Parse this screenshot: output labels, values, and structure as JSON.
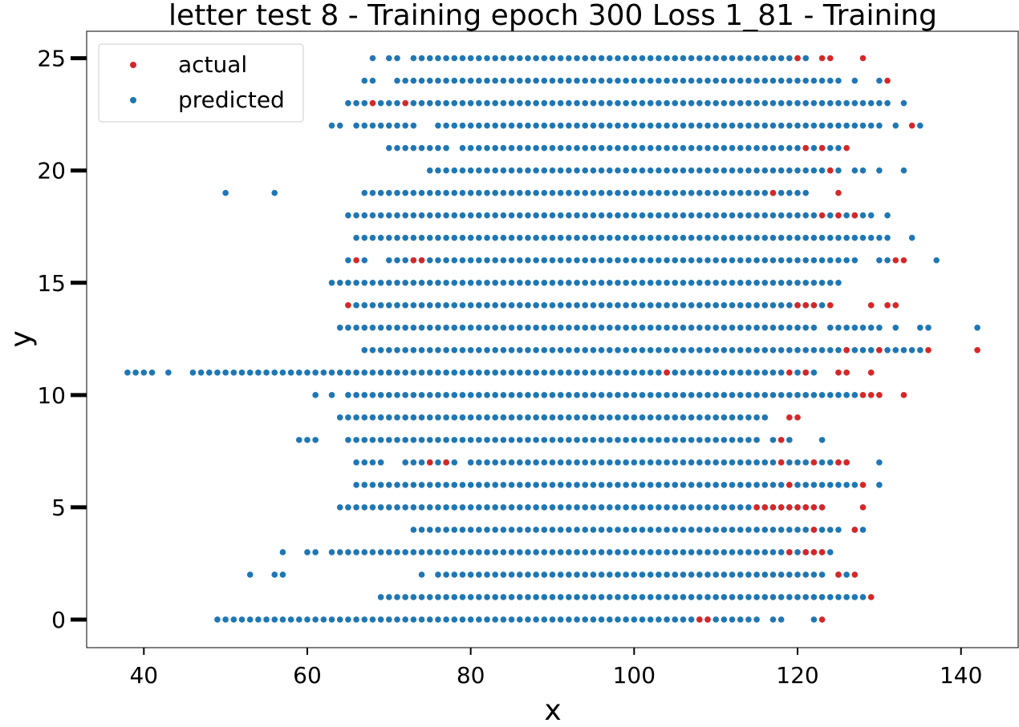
{
  "chart_data": {
    "type": "scatter",
    "title": "letter test 8 - Training epoch 300 Loss 1_81 - Training",
    "xlabel": "x",
    "ylabel": "y",
    "xlim": [
      33,
      147
    ],
    "ylim": [
      -1.25,
      26.2
    ],
    "xticks": [
      40,
      60,
      80,
      100,
      120,
      140
    ],
    "yticks": [
      0,
      5,
      10,
      15,
      20,
      25
    ],
    "grid": false,
    "legend_position": "top-left",
    "colors": {
      "actual": "#d62728",
      "predicted": "#1f77b4"
    },
    "series": [
      {
        "name": "predicted",
        "color": "#1f77b4",
        "rows": [
          {
            "y": 0,
            "ranges": [
              [
                49,
                115
              ],
              [
                117,
                118
              ],
              [
                122,
                122
              ]
            ]
          },
          {
            "y": 1,
            "ranges": [
              [
                69,
                128
              ]
            ]
          },
          {
            "y": 2,
            "ranges": [
              [
                53,
                53
              ],
              [
                56,
                57
              ],
              [
                74,
                74
              ],
              [
                76,
                123
              ],
              [
                125,
                126
              ]
            ]
          },
          {
            "y": 3,
            "ranges": [
              [
                57,
                57
              ],
              [
                60,
                61
              ],
              [
                63,
                124
              ]
            ]
          },
          {
            "y": 4,
            "ranges": [
              [
                73,
                125
              ],
              [
                127,
                128
              ]
            ]
          },
          {
            "y": 5,
            "ranges": [
              [
                64,
                123
              ]
            ]
          },
          {
            "y": 6,
            "ranges": [
              [
                66,
                127
              ],
              [
                130,
                130
              ]
            ]
          },
          {
            "y": 7,
            "ranges": [
              [
                66,
                69
              ],
              [
                72,
                78
              ],
              [
                80,
                126
              ],
              [
                130,
                130
              ]
            ]
          },
          {
            "y": 8,
            "ranges": [
              [
                59,
                61
              ],
              [
                65,
                115
              ],
              [
                117,
                119
              ],
              [
                123,
                123
              ]
            ]
          },
          {
            "y": 9,
            "ranges": [
              [
                64,
                116
              ]
            ]
          },
          {
            "y": 10,
            "ranges": [
              [
                61,
                61
              ],
              [
                63,
                63
              ],
              [
                65,
                127
              ]
            ]
          },
          {
            "y": 11,
            "ranges": [
              [
                38,
                41
              ],
              [
                43,
                43
              ],
              [
                46,
                118
              ],
              [
                120,
                122
              ]
            ]
          },
          {
            "y": 12,
            "ranges": [
              [
                67,
                135
              ]
            ]
          },
          {
            "y": 13,
            "ranges": [
              [
                64,
                122
              ],
              [
                124,
                130
              ],
              [
                132,
                132
              ],
              [
                135,
                136
              ],
              [
                142,
                142
              ]
            ]
          },
          {
            "y": 14,
            "ranges": [
              [
                66,
                123
              ]
            ]
          },
          {
            "y": 15,
            "ranges": [
              [
                63,
                125
              ]
            ]
          },
          {
            "y": 16,
            "ranges": [
              [
                65,
                65
              ],
              [
                67,
                67
              ],
              [
                70,
                127
              ],
              [
                130,
                131
              ],
              [
                137,
                137
              ]
            ]
          },
          {
            "y": 17,
            "ranges": [
              [
                66,
                131
              ],
              [
                134,
                134
              ]
            ]
          },
          {
            "y": 18,
            "ranges": [
              [
                65,
                122
              ],
              [
                124,
                129
              ],
              [
                131,
                131
              ]
            ]
          },
          {
            "y": 19,
            "ranges": [
              [
                50,
                50
              ],
              [
                56,
                56
              ],
              [
                67,
                121
              ]
            ]
          },
          {
            "y": 20,
            "ranges": [
              [
                75,
                125
              ],
              [
                127,
                128
              ],
              [
                130,
                130
              ],
              [
                133,
                133
              ]
            ]
          },
          {
            "y": 21,
            "ranges": [
              [
                70,
                77
              ],
              [
                79,
                125
              ]
            ]
          },
          {
            "y": 22,
            "ranges": [
              [
                63,
                64
              ],
              [
                66,
                73
              ],
              [
                76,
                130
              ],
              [
                132,
                132
              ],
              [
                135,
                135
              ]
            ]
          },
          {
            "y": 23,
            "ranges": [
              [
                65,
                67
              ],
              [
                69,
                71
              ],
              [
                73,
                131
              ],
              [
                133,
                133
              ]
            ]
          },
          {
            "y": 24,
            "ranges": [
              [
                67,
                68
              ],
              [
                71,
                125
              ],
              [
                127,
                127
              ],
              [
                130,
                130
              ]
            ]
          },
          {
            "y": 25,
            "ranges": [
              [
                68,
                68
              ],
              [
                70,
                71
              ],
              [
                73,
                121
              ]
            ]
          }
        ]
      },
      {
        "name": "actual",
        "color": "#d62728",
        "points": [
          [
            108,
            0
          ],
          [
            109,
            0
          ],
          [
            123,
            0
          ],
          [
            129,
            1
          ],
          [
            125,
            2
          ],
          [
            127,
            2
          ],
          [
            119,
            3
          ],
          [
            121,
            3
          ],
          [
            122,
            3
          ],
          [
            123,
            3
          ],
          [
            122,
            4
          ],
          [
            127,
            4
          ],
          [
            115,
            5
          ],
          [
            116,
            5
          ],
          [
            117,
            5
          ],
          [
            118,
            5
          ],
          [
            119,
            5
          ],
          [
            120,
            5
          ],
          [
            121,
            5
          ],
          [
            122,
            5
          ],
          [
            123,
            5
          ],
          [
            128,
            5
          ],
          [
            119,
            6
          ],
          [
            128,
            6
          ],
          [
            75,
            7
          ],
          [
            77,
            7
          ],
          [
            118,
            7
          ],
          [
            122,
            7
          ],
          [
            125,
            7
          ],
          [
            126,
            7
          ],
          [
            118,
            8
          ],
          [
            119,
            9
          ],
          [
            120,
            9
          ],
          [
            128,
            10
          ],
          [
            129,
            10
          ],
          [
            130,
            10
          ],
          [
            133,
            10
          ],
          [
            104,
            11
          ],
          [
            119,
            11
          ],
          [
            121,
            11
          ],
          [
            125,
            11
          ],
          [
            126,
            11
          ],
          [
            129,
            11
          ],
          [
            126,
            12
          ],
          [
            130,
            12
          ],
          [
            136,
            12
          ],
          [
            142,
            12
          ],
          [
            65,
            14
          ],
          [
            120,
            14
          ],
          [
            121,
            14
          ],
          [
            122,
            14
          ],
          [
            124,
            14
          ],
          [
            129,
            14
          ],
          [
            131,
            14
          ],
          [
            132,
            14
          ],
          [
            66,
            16
          ],
          [
            73,
            16
          ],
          [
            74,
            16
          ],
          [
            132,
            16
          ],
          [
            133,
            16
          ],
          [
            123,
            18
          ],
          [
            125,
            18
          ],
          [
            127,
            18
          ],
          [
            117,
            19
          ],
          [
            125,
            19
          ],
          [
            124,
            20
          ],
          [
            121,
            21
          ],
          [
            123,
            21
          ],
          [
            126,
            21
          ],
          [
            134,
            22
          ],
          [
            68,
            23
          ],
          [
            72,
            23
          ],
          [
            131,
            24
          ],
          [
            120,
            25
          ],
          [
            123,
            25
          ],
          [
            124,
            25
          ],
          [
            128,
            25
          ]
        ]
      }
    ]
  }
}
